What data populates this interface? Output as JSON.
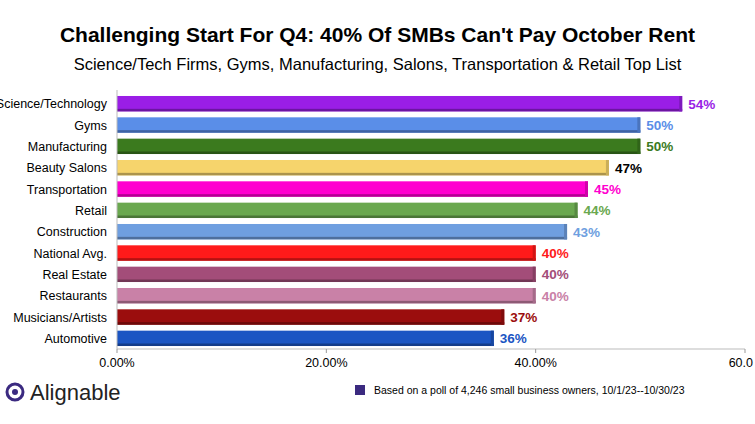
{
  "chart_data": {
    "type": "bar",
    "orientation": "horizontal",
    "title": "Challenging Start For Q4: 40% Of SMBs Can't Pay October Rent",
    "subtitle": "Science/Tech Firms, Gyms, Manufacturing, Salons, Transportation & Retail Top List",
    "categories": [
      "Science/Technology",
      "Gyms",
      "Manufacturing",
      "Beauty Salons",
      "Transportation",
      "Retail",
      "Construction",
      "National Avg.",
      "Real Estate",
      "Restaurants",
      "Musicians/Artists",
      "Automotive"
    ],
    "values": [
      54,
      50,
      50,
      47,
      45,
      44,
      43,
      40,
      40,
      40,
      37,
      36
    ],
    "value_labels": [
      "54%",
      "50%",
      "50%",
      "47%",
      "45%",
      "44%",
      "43%",
      "40%",
      "40%",
      "40%",
      "37%",
      "36%"
    ],
    "colors": [
      "#9a1ee6",
      "#5a8ee8",
      "#3b7a1e",
      "#f6d46c",
      "#ff00cf",
      "#6aa84f",
      "#6f9fe0",
      "#ff1a1a",
      "#a34d79",
      "#c981a7",
      "#9b0d0d",
      "#1b55c3"
    ],
    "xlim": [
      0,
      60
    ],
    "xticks": [
      {
        "value": 0,
        "label": "0.00%"
      },
      {
        "value": 20,
        "label": "20.00%"
      },
      {
        "value": 40,
        "label": "40.00%"
      },
      {
        "value": 60,
        "label": "60.0"
      }
    ],
    "grid": false,
    "data_labels": true,
    "logo_text": "Alignable",
    "footnote": "Based on a poll of 4,246 small business owners, 10/1/23--10/30/23",
    "footnote_color": "#3b2a80"
  }
}
